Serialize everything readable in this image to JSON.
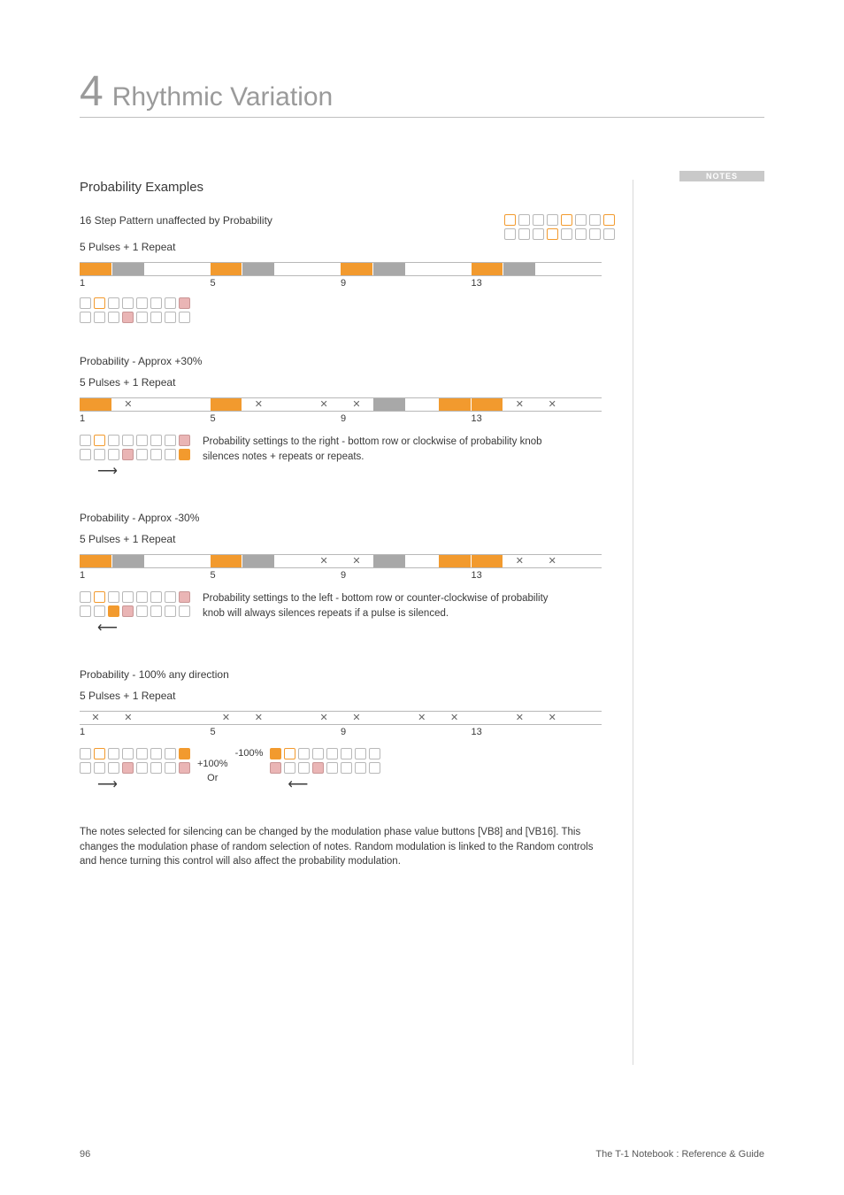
{
  "chapter": {
    "number": "4",
    "title": "Rhythmic Variation"
  },
  "notes_label": "NOTES",
  "section_title": "Probability Examples",
  "colors": {
    "active": "#f29a2e",
    "muted": "#a8a8a8",
    "border_gray": "#b8b8b8",
    "pink_fill": "#eab5b5",
    "text": "#3a3a3a",
    "light_text": "#9a9a9a"
  },
  "axis_labels": [
    "1",
    "5",
    "9",
    "13"
  ],
  "ex1": {
    "title": "16 Step Pattern unaffected by Probability",
    "subtitle": "5 Pulses + 1 Repeat",
    "steps": [
      "a",
      "m",
      "",
      "",
      "a",
      "m",
      "",
      "",
      "a",
      "m",
      "",
      "",
      "a",
      "m",
      "",
      ""
    ],
    "grid_top_right": {
      "row1": [
        "o",
        "",
        "",
        "",
        "o",
        "",
        "",
        "o"
      ],
      "row2": [
        "",
        "",
        "",
        "o",
        "",
        "",
        "",
        ""
      ]
    },
    "grid_below": {
      "row1": [
        "",
        "o",
        "",
        "",
        "",
        "",
        "",
        "p"
      ],
      "row2": [
        "",
        "",
        "",
        "p",
        "",
        "",
        "",
        ""
      ]
    }
  },
  "ex2": {
    "title": "Probability - Approx +30%",
    "subtitle": "5 Pulses + 1 Repeat",
    "steps": [
      "a",
      "x",
      "",
      "",
      "a",
      "x",
      "",
      "x",
      "x",
      "m",
      "",
      "a",
      "a",
      "x",
      "x",
      ""
    ],
    "desc": "Probability settings to the right - bottom row or clockwise of probability knob silences notes + repeats or repeats.",
    "grid": {
      "row1": [
        "",
        "o",
        "",
        "",
        "",
        "",
        "",
        "p"
      ],
      "row2": [
        "",
        "",
        "",
        "p",
        "",
        "",
        "",
        "f"
      ]
    },
    "arrow": "right"
  },
  "ex3": {
    "title": "Probability - Approx -30%",
    "subtitle": "5 Pulses + 1 Repeat",
    "steps": [
      "a",
      "m",
      "",
      "",
      "a",
      "m",
      "",
      "x",
      "x",
      "m",
      "",
      "a",
      "a",
      "x",
      "x",
      ""
    ],
    "desc": "Probability settings to the left - bottom row or counter-clockwise of probability knob will always silences repeats if a pulse is silenced.",
    "grid": {
      "row1": [
        "",
        "o",
        "",
        "",
        "",
        "",
        "",
        "p"
      ],
      "row2": [
        "",
        "",
        "f",
        "p",
        "",
        "",
        "",
        ""
      ]
    },
    "arrow": "left"
  },
  "ex4": {
    "title": "Probability - 100% any direction",
    "subtitle": "5 Pulses + 1 Repeat",
    "steps": [
      "x",
      "x",
      "",
      "",
      "x",
      "x",
      "",
      "x",
      "x",
      "",
      "x",
      "x",
      "",
      "x",
      "x",
      ""
    ],
    "plus100": "+100%",
    "minus100": "-100%",
    "or": "Or",
    "grid_left": {
      "row1": [
        "",
        "o",
        "",
        "",
        "",
        "",
        "",
        "f"
      ],
      "row2": [
        "",
        "",
        "",
        "p",
        "",
        "",
        "",
        "p"
      ]
    },
    "grid_right": {
      "row1": [
        "f",
        "o",
        "",
        "",
        "",
        "",
        "",
        ""
      ],
      "row2": [
        "p",
        "",
        "",
        "p",
        "",
        "",
        "",
        ""
      ]
    }
  },
  "footer_text": "The notes selected for silencing can be changed by the modulation phase value buttons [VB8] and [VB16]. This changes the modulation phase of random selection of notes. Random modulation is linked to the Random controls and hence turning this control will also affect the probability modulation.",
  "page_number": "96",
  "doc_title": "The T-1 Notebook : Reference & Guide"
}
